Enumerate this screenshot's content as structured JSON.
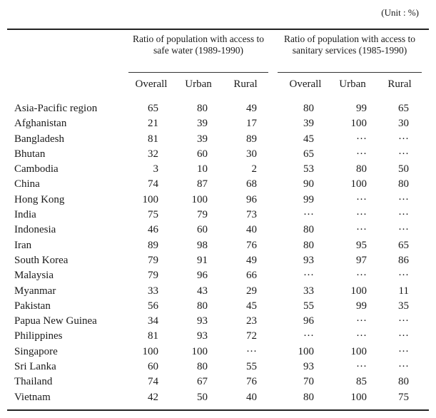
{
  "unit": "(Unit : %)",
  "groups": [
    "Ratio of population with access to safe water (1989-1990)",
    "Ratio of population with access to sanitary services (1985-1990)"
  ],
  "columns": [
    "Overall",
    "Urban",
    "Rural",
    "Overall",
    "Urban",
    "Rural"
  ],
  "rows": [
    {
      "country": "Asia-Pacific region",
      "values": [
        "65",
        "80",
        "49",
        "80",
        "99",
        "65"
      ]
    },
    {
      "country": "Afghanistan",
      "values": [
        "21",
        "39",
        "17",
        "39",
        "100",
        "30"
      ]
    },
    {
      "country": "Bangladesh",
      "values": [
        "81",
        "39",
        "89",
        "45",
        "···",
        "···"
      ]
    },
    {
      "country": "Bhutan",
      "values": [
        "32",
        "60",
        "30",
        "65",
        "···",
        "···"
      ]
    },
    {
      "country": "Cambodia",
      "values": [
        "3",
        "10",
        "2",
        "53",
        "80",
        "50"
      ]
    },
    {
      "country": "China",
      "values": [
        "74",
        "87",
        "68",
        "90",
        "100",
        "80"
      ]
    },
    {
      "country": "Hong Kong",
      "values": [
        "100",
        "100",
        "96",
        "99",
        "···",
        "···"
      ]
    },
    {
      "country": "India",
      "values": [
        "75",
        "79",
        "73",
        "···",
        "···",
        "···"
      ]
    },
    {
      "country": "Indonesia",
      "values": [
        "46",
        "60",
        "40",
        "80",
        "···",
        "···"
      ]
    },
    {
      "country": "Iran",
      "values": [
        "89",
        "98",
        "76",
        "80",
        "95",
        "65"
      ]
    },
    {
      "country": "South Korea",
      "values": [
        "79",
        "91",
        "49",
        "93",
        "97",
        "86"
      ]
    },
    {
      "country": "Malaysia",
      "values": [
        "79",
        "96",
        "66",
        "···",
        "···",
        "···"
      ]
    },
    {
      "country": "Myanmar",
      "values": [
        "33",
        "43",
        "29",
        "33",
        "100",
        "11"
      ]
    },
    {
      "country": "Pakistan",
      "values": [
        "56",
        "80",
        "45",
        "55",
        "99",
        "35"
      ]
    },
    {
      "country": "Papua New Guinea",
      "values": [
        "34",
        "93",
        "23",
        "96",
        "···",
        "···"
      ]
    },
    {
      "country": "Philippines",
      "values": [
        "81",
        "93",
        "72",
        "···",
        "···",
        "···"
      ]
    },
    {
      "country": "Singapore",
      "values": [
        "100",
        "100",
        "···",
        "100",
        "100",
        "···"
      ]
    },
    {
      "country": "Sri Lanka",
      "values": [
        "60",
        "80",
        "55",
        "93",
        "···",
        "···"
      ]
    },
    {
      "country": "Thailand",
      "values": [
        "74",
        "67",
        "76",
        "70",
        "85",
        "80"
      ]
    },
    {
      "country": "Vietnam",
      "values": [
        "42",
        "50",
        "40",
        "80",
        "100",
        "75"
      ]
    }
  ]
}
